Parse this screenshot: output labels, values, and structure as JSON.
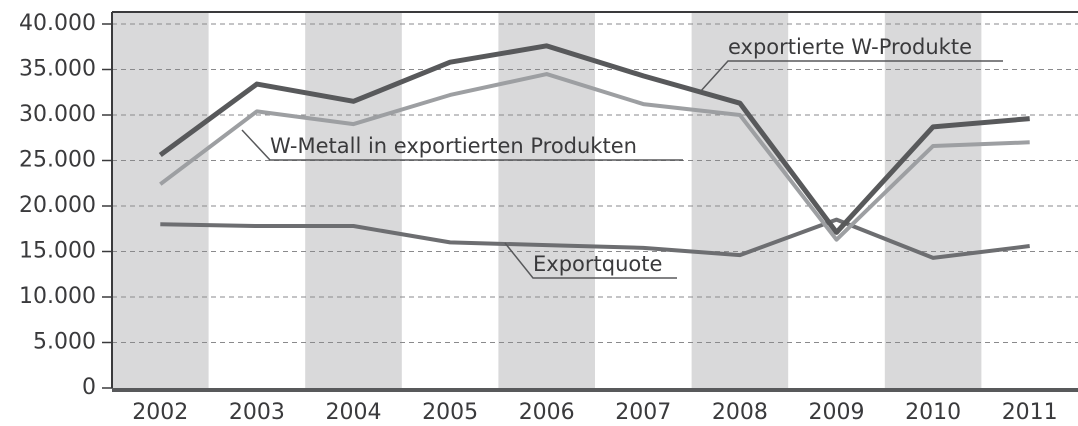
{
  "chart_data": {
    "type": "line",
    "categories": [
      "2002",
      "2003",
      "2004",
      "2005",
      "2006",
      "2007",
      "2008",
      "2009",
      "2010",
      "2011"
    ],
    "series": [
      {
        "name": "exportierte W-Produkte",
        "color": "#58595b",
        "values": [
          25600,
          33400,
          31500,
          35800,
          37600,
          34300,
          31300,
          17100,
          28700,
          29600
        ]
      },
      {
        "name": "W-Metall in exportierten Produkten",
        "color": "#9d9fa2",
        "values": [
          22400,
          30400,
          29000,
          32200,
          34500,
          31200,
          30000,
          16300,
          26600,
          27000
        ]
      },
      {
        "name": "Exportquote",
        "color": "#6d6e71",
        "values": [
          18000,
          17800,
          17800,
          16000,
          15700,
          15400,
          14600,
          18500,
          14300,
          15600
        ]
      }
    ],
    "ylim": [
      0,
      40000
    ],
    "yticks": [
      0,
      {
        "value": 5000,
        "label": "5.000"
      },
      {
        "value": 10000,
        "label": "10.000"
      },
      {
        "value": 15000,
        "label": "15.000"
      },
      {
        "value": 20000,
        "label": "20.000"
      },
      {
        "value": 25000,
        "label": "25.000"
      },
      {
        "value": 30000,
        "label": "30.000"
      },
      {
        "value": 35000,
        "label": "35.000"
      },
      {
        "value": 40000,
        "label": "40.000"
      }
    ],
    "grid": true
  }
}
